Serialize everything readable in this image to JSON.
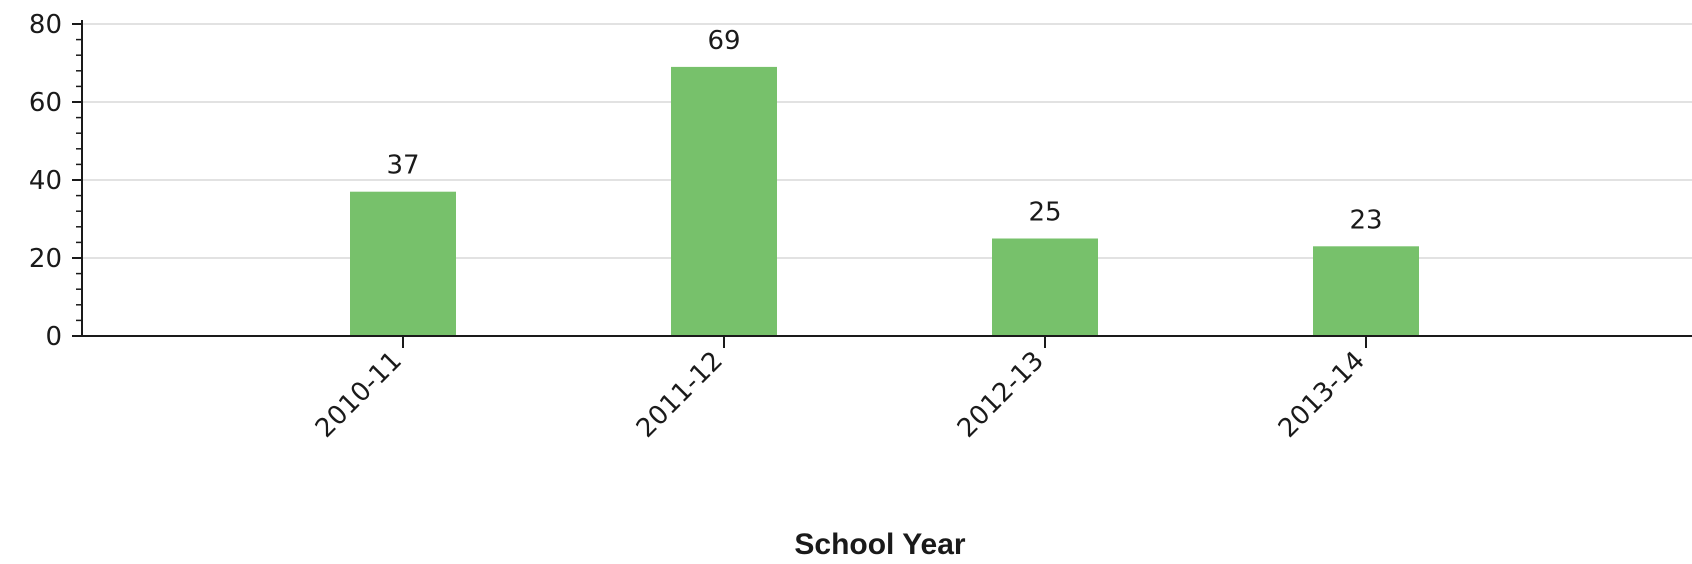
{
  "chart_data": {
    "type": "bar",
    "title": "",
    "xlabel": "School Year",
    "ylabel": "",
    "categories": [
      "2010-11",
      "2011-12",
      "2012-13",
      "2013-14"
    ],
    "values": [
      37,
      69,
      25,
      23
    ],
    "ylim": [
      0,
      80
    ],
    "yticks": [
      0,
      20,
      40,
      60,
      80
    ],
    "grid": true,
    "legend": "none",
    "bar_color": "#77c16b",
    "grid_color": "#d9d9d9",
    "axis_color": "#1a1a1a"
  }
}
